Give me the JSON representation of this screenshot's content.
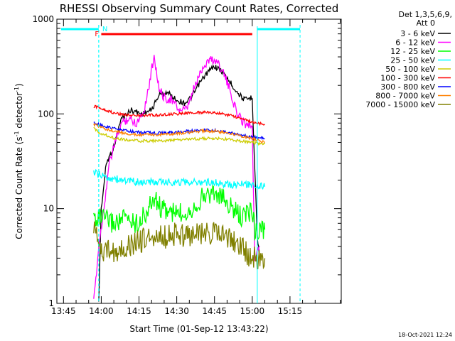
{
  "chart_data": {
    "type": "line",
    "title": "RHESSI Observing Summary Count Rates, Corrected",
    "xlabel": "Start Time (01-Sep-12 13:43:22)",
    "ylabel_main": "Corrected Count Rate (s",
    "ylabel_sup1": "-1",
    "ylabel_mid": " detector",
    "ylabel_sup2": "-1",
    "ylabel_end": ")",
    "y_scale": "log",
    "ylim": [
      1,
      1000
    ],
    "xlim_minutes_after_1343_22": [
      -1,
      112
    ],
    "y_ticks": [
      {
        "v": 1,
        "label": "1"
      },
      {
        "v": 10,
        "label": "10"
      },
      {
        "v": 100,
        "label": "100"
      },
      {
        "v": 1000,
        "label": "1000"
      }
    ],
    "x_ticks": [
      {
        "t": "13:45",
        "label": "13:45"
      },
      {
        "t": "14:00",
        "label": "14:00"
      },
      {
        "t": "14:15",
        "label": "14:15"
      },
      {
        "t": "14:30",
        "label": "14:30"
      },
      {
        "t": "14:45",
        "label": "14:45"
      },
      {
        "t": "15:00",
        "label": "15:00"
      },
      {
        "t": "15:15",
        "label": "15:15"
      }
    ],
    "legend": {
      "header1": "Det 1,3,5,6,9,",
      "header2": "Att 0",
      "placement": "right"
    },
    "series": [
      {
        "name": "3 - 6 keV",
        "color": "#000000",
        "points": [
          [
            "13:59",
            1.0
          ],
          [
            "14:00",
            10
          ],
          [
            "14:02",
            30
          ],
          [
            "14:05",
            45
          ],
          [
            "14:08",
            90
          ],
          [
            "14:12",
            110
          ],
          [
            "14:16",
            100
          ],
          [
            "14:20",
            110
          ],
          [
            "14:23",
            160
          ],
          [
            "14:26",
            170
          ],
          [
            "14:30",
            140
          ],
          [
            "14:33",
            130
          ],
          [
            "14:36",
            150
          ],
          [
            "14:39",
            210
          ],
          [
            "14:42",
            270
          ],
          [
            "14:45",
            320
          ],
          [
            "14:48",
            280
          ],
          [
            "14:51",
            220
          ],
          [
            "14:54",
            170
          ],
          [
            "14:57",
            140
          ],
          [
            "15:00",
            150
          ],
          [
            "15:02",
            5
          ],
          [
            "15:03",
            3
          ]
        ]
      },
      {
        "name": "6 - 12 keV",
        "color": "#ff00ff",
        "points": [
          [
            "13:57",
            1.0
          ],
          [
            "13:59",
            4
          ],
          [
            "14:01",
            10
          ],
          [
            "14:03",
            28
          ],
          [
            "14:05",
            45
          ],
          [
            "14:08",
            80
          ],
          [
            "14:11",
            90
          ],
          [
            "14:14",
            80
          ],
          [
            "14:17",
            110
          ],
          [
            "14:19",
            200
          ],
          [
            "14:21",
            420
          ],
          [
            "14:23",
            180
          ],
          [
            "14:25",
            150
          ],
          [
            "14:28",
            140
          ],
          [
            "14:31",
            110
          ],
          [
            "14:34",
            110
          ],
          [
            "14:37",
            190
          ],
          [
            "14:40",
            300
          ],
          [
            "14:43",
            380
          ],
          [
            "14:46",
            360
          ],
          [
            "14:48",
            300
          ],
          [
            "14:51",
            180
          ],
          [
            "14:54",
            100
          ],
          [
            "14:57",
            80
          ],
          [
            "15:00",
            75
          ],
          [
            "15:01",
            3
          ],
          [
            "15:03",
            4
          ]
        ]
      },
      {
        "name": "12 - 25 keV",
        "color": "#00ff00",
        "points": [
          [
            "13:57",
            8
          ],
          [
            "14:00",
            8
          ],
          [
            "14:05",
            7
          ],
          [
            "14:10",
            8
          ],
          [
            "14:14",
            7
          ],
          [
            "14:18",
            9
          ],
          [
            "14:21",
            13
          ],
          [
            "14:24",
            10
          ],
          [
            "14:28",
            9
          ],
          [
            "14:32",
            9
          ],
          [
            "14:36",
            10
          ],
          [
            "14:40",
            13
          ],
          [
            "14:44",
            15
          ],
          [
            "14:48",
            13
          ],
          [
            "14:52",
            10
          ],
          [
            "14:56",
            8
          ],
          [
            "15:00",
            10
          ],
          [
            "15:01",
            6
          ],
          [
            "15:05",
            6
          ]
        ]
      },
      {
        "name": "25 - 50 keV",
        "color": "#00ffff",
        "points": [
          [
            "13:57",
            24
          ],
          [
            "13:59",
            23
          ],
          [
            "14:00",
            22
          ],
          [
            "14:04",
            21
          ],
          [
            "14:08",
            20
          ],
          [
            "14:15",
            19
          ],
          [
            "14:22",
            19
          ],
          [
            "14:28",
            19
          ],
          [
            "14:35",
            19
          ],
          [
            "14:40",
            19
          ],
          [
            "14:45",
            19
          ],
          [
            "14:50",
            18
          ],
          [
            "14:55",
            18
          ],
          [
            "15:00",
            18
          ],
          [
            "15:05",
            17
          ]
        ]
      },
      {
        "name": "50 - 100 keV",
        "color": "#cccc00",
        "points": [
          [
            "13:57",
            70
          ],
          [
            "14:00",
            62
          ],
          [
            "14:05",
            56
          ],
          [
            "14:10",
            53
          ],
          [
            "14:15",
            52
          ],
          [
            "14:20",
            52
          ],
          [
            "14:25",
            52
          ],
          [
            "14:30",
            53
          ],
          [
            "14:35",
            54
          ],
          [
            "14:40",
            55
          ],
          [
            "14:45",
            55
          ],
          [
            "14:50",
            54
          ],
          [
            "14:55",
            52
          ],
          [
            "15:00",
            50
          ],
          [
            "15:05",
            48
          ]
        ]
      },
      {
        "name": "100 - 300 keV",
        "color": "#ff0000",
        "points": [
          [
            "13:57",
            120
          ],
          [
            "14:00",
            115
          ],
          [
            "14:05",
            102
          ],
          [
            "14:10",
            98
          ],
          [
            "14:15",
            96
          ],
          [
            "14:20",
            97
          ],
          [
            "14:25",
            98
          ],
          [
            "14:30",
            100
          ],
          [
            "14:35",
            102
          ],
          [
            "14:40",
            104
          ],
          [
            "14:45",
            103
          ],
          [
            "14:50",
            98
          ],
          [
            "14:55",
            90
          ],
          [
            "15:00",
            82
          ],
          [
            "15:05",
            78
          ]
        ]
      },
      {
        "name": "300 - 800 keV",
        "color": "#0000ff",
        "points": [
          [
            "13:57",
            80
          ],
          [
            "14:00",
            76
          ],
          [
            "14:05",
            70
          ],
          [
            "14:10",
            66
          ],
          [
            "14:15",
            64
          ],
          [
            "14:20",
            63
          ],
          [
            "14:25",
            63
          ],
          [
            "14:30",
            64
          ],
          [
            "14:35",
            66
          ],
          [
            "14:40",
            68
          ],
          [
            "14:45",
            67
          ],
          [
            "14:50",
            64
          ],
          [
            "14:55",
            60
          ],
          [
            "15:00",
            57
          ],
          [
            "15:05",
            55
          ]
        ]
      },
      {
        "name": "800 - 7000 keV",
        "color": "#ff8000",
        "points": [
          [
            "13:57",
            78
          ],
          [
            "14:00",
            72
          ],
          [
            "14:05",
            66
          ],
          [
            "14:10",
            62
          ],
          [
            "14:15",
            60
          ],
          [
            "14:20",
            60
          ],
          [
            "14:25",
            61
          ],
          [
            "14:30",
            62
          ],
          [
            "14:35",
            64
          ],
          [
            "14:40",
            66
          ],
          [
            "14:45",
            66
          ],
          [
            "14:50",
            63
          ],
          [
            "14:55",
            59
          ],
          [
            "15:00",
            55
          ],
          [
            "15:05",
            50
          ]
        ]
      },
      {
        "name": "7000 - 15000 keV",
        "color": "#808000",
        "points": [
          [
            "13:57",
            7
          ],
          [
            "13:59",
            4
          ],
          [
            "14:02",
            3.5
          ],
          [
            "14:05",
            3.5
          ],
          [
            "14:10",
            4
          ],
          [
            "14:15",
            4.5
          ],
          [
            "14:20",
            5
          ],
          [
            "14:25",
            5
          ],
          [
            "14:30",
            5.5
          ],
          [
            "14:35",
            5
          ],
          [
            "14:40",
            5.5
          ],
          [
            "14:45",
            5.5
          ],
          [
            "14:50",
            5
          ],
          [
            "14:55",
            4
          ],
          [
            "15:00",
            3
          ],
          [
            "15:05",
            3
          ]
        ]
      }
    ],
    "intervals": [
      {
        "label": "",
        "color": "#00ffff",
        "start": "13:44",
        "end": "13:59",
        "dashed_edge": "13:59"
      },
      {
        "label": "N",
        "color": "#00ffff",
        "start": "13:59",
        "end": "13:59",
        "dashed_edge": "13:59"
      },
      {
        "label": "",
        "color": "#00ffff",
        "start": "15:02",
        "end": "15:19",
        "dashed_edge": "15:19"
      },
      {
        "label": "F",
        "color": "#ff0000",
        "start": "14:00",
        "end": "15:00",
        "dashed_edge": ""
      }
    ],
    "footer_stamp": "18-Oct-2021 12:24"
  }
}
